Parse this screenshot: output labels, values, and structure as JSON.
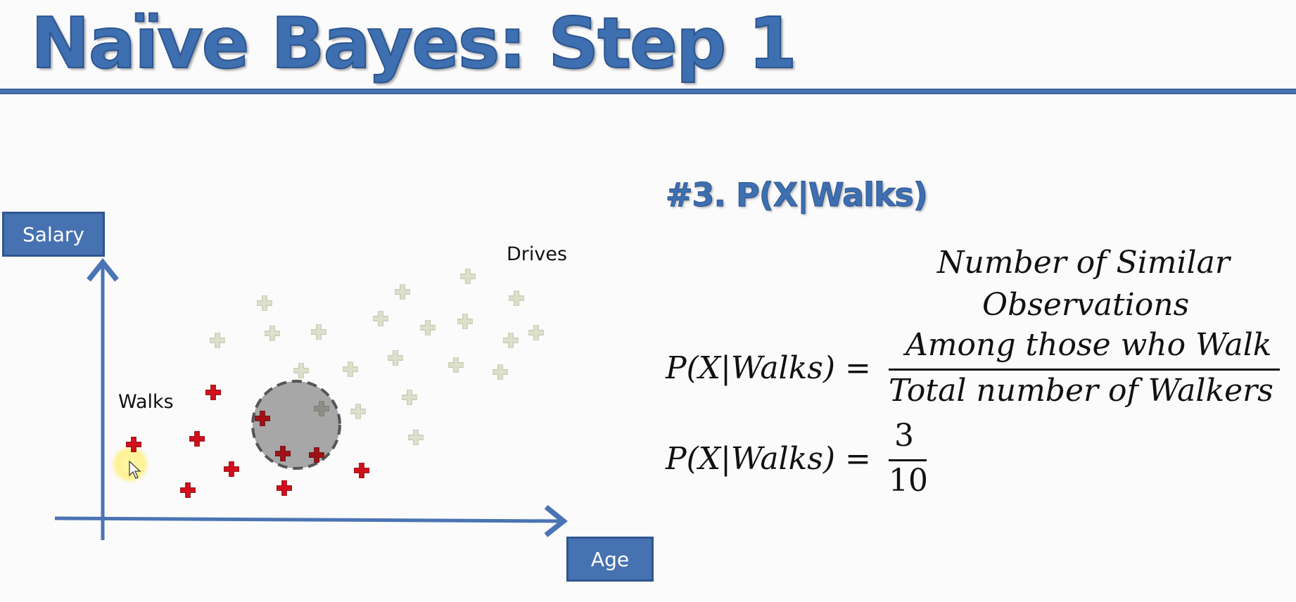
{
  "slide": {
    "title": "Naïve Bayes: Step 1",
    "title_color": "#3e6fb0"
  },
  "plot": {
    "y_axis_label": "Salary",
    "x_axis_label": "Age",
    "walks_label": "Walks",
    "drives_label": "Drives",
    "axis_color": "#4a74b3",
    "walk_color": "#d40f1b",
    "drive_color": "#dde0cc",
    "circle_color": "#a7a7a7"
  },
  "formula": {
    "heading": "#3. P(X|Walks)",
    "numerator": [
      "Number of Similar",
      "Observations",
      "Among those who Walk"
    ],
    "lhs": "P(X|Walks) =",
    "denominator": "Total number of Walkers",
    "result_numerator": "3",
    "result_denominator": "10"
  }
}
